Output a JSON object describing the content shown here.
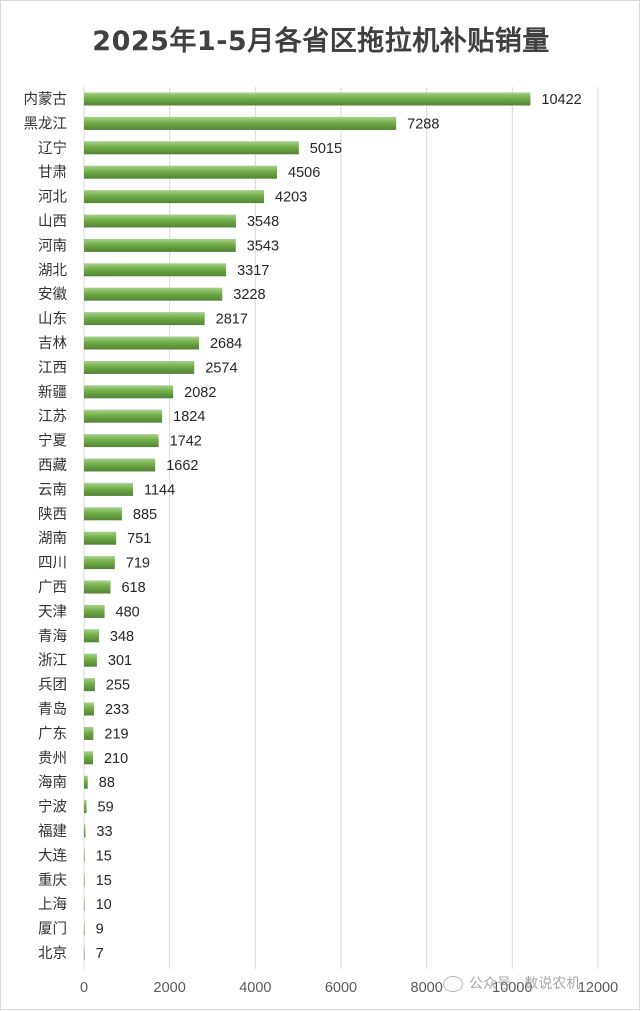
{
  "chart_data": {
    "type": "bar",
    "orientation": "horizontal",
    "title": "2025年1-5月各省区拖拉机补贴销量",
    "categories": [
      "内蒙古",
      "黑龙江",
      "辽宁",
      "甘肃",
      "河北",
      "山西",
      "河南",
      "湖北",
      "安徽",
      "山东",
      "吉林",
      "江西",
      "新疆",
      "江苏",
      "宁夏",
      "西藏",
      "云南",
      "陕西",
      "湖南",
      "四川",
      "广西",
      "天津",
      "青海",
      "浙江",
      "兵团",
      "青岛",
      "广东",
      "贵州",
      "海南",
      "宁波",
      "福建",
      "大连",
      "重庆",
      "上海",
      "厦门",
      "北京"
    ],
    "values": [
      10422,
      7288,
      5015,
      4506,
      4203,
      3548,
      3543,
      3317,
      3228,
      2817,
      2684,
      2574,
      2082,
      1824,
      1742,
      1662,
      1144,
      885,
      751,
      719,
      618,
      480,
      348,
      301,
      255,
      233,
      219,
      210,
      88,
      59,
      33,
      15,
      15,
      10,
      9,
      7
    ],
    "xlim": [
      0,
      12000
    ],
    "xticks": [
      0,
      2000,
      4000,
      6000,
      8000,
      10000,
      12000
    ],
    "grid": true,
    "legend": "none",
    "bar_color": "#70ad47",
    "data_labels": true
  },
  "watermark": {
    "text": "公众号 · 数说农机",
    "icon": "wechat-icon"
  }
}
